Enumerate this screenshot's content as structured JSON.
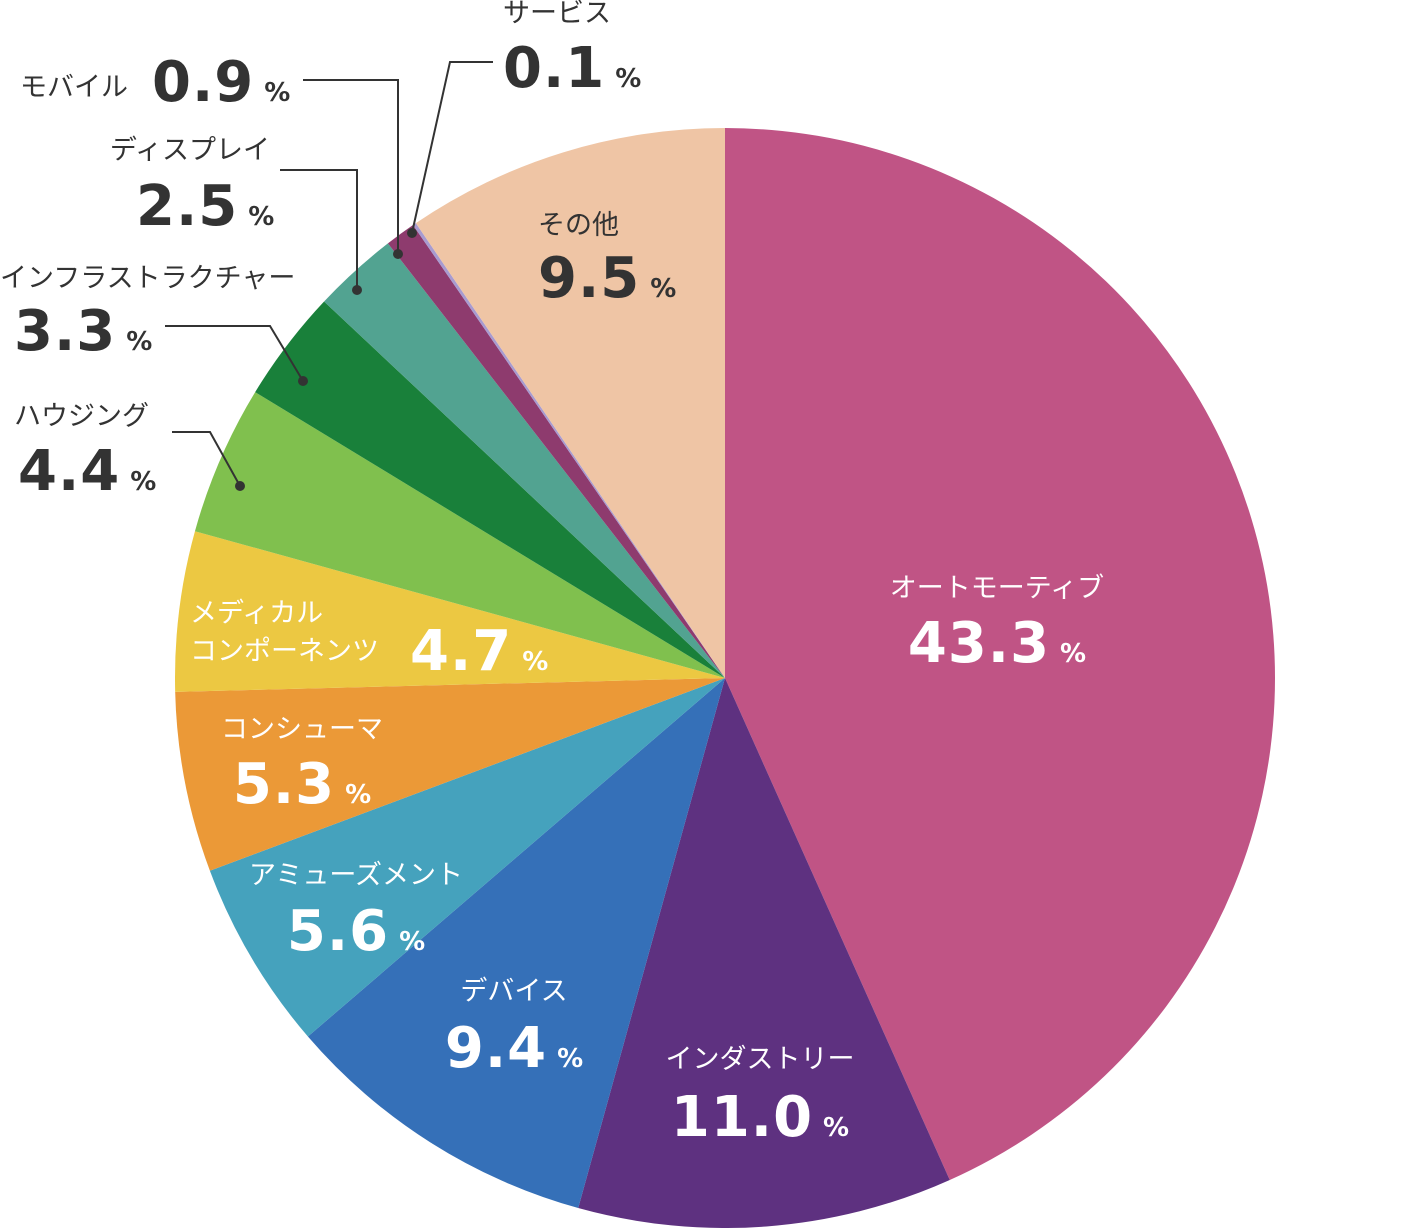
{
  "chart_data": {
    "type": "pie",
    "start": "top",
    "direction": "clockwise",
    "unit": "%",
    "slices": [
      {
        "label": "オートモーティブ",
        "value": 43.3,
        "display": "43.3",
        "color": "#c05485"
      },
      {
        "label": "インダストリー",
        "value": 11.0,
        "display": "11.0",
        "color": "#5e3180"
      },
      {
        "label": "デバイス",
        "value": 9.4,
        "display": "9.4",
        "color": "#3570b8"
      },
      {
        "label": "アミューズメント",
        "value": 5.6,
        "display": "5.6",
        "color": "#45a2bd"
      },
      {
        "label": "コンシューマ",
        "value": 5.3,
        "display": "5.3",
        "color": "#eb9937"
      },
      {
        "label": "メディカル\nコンポーネンツ",
        "value": 4.7,
        "display": "4.7",
        "color": "#ecc842"
      },
      {
        "label": "ハウジング",
        "value": 4.4,
        "display": "4.4",
        "color": "#80c04e"
      },
      {
        "label": "インフラストラクチャー",
        "value": 3.3,
        "display": "3.3",
        "color": "#19803a"
      },
      {
        "label": "ディスプレイ",
        "value": 2.5,
        "display": "2.5",
        "color": "#52a391"
      },
      {
        "label": "モバイル",
        "value": 0.9,
        "display": "0.9",
        "color": "#8e3b6e"
      },
      {
        "label": "サービス",
        "value": 0.1,
        "display": "0.1",
        "color": "#a89bd0"
      },
      {
        "label": "その他",
        "value": 9.5,
        "display": "9.5",
        "color": "#efc5a5"
      }
    ]
  }
}
